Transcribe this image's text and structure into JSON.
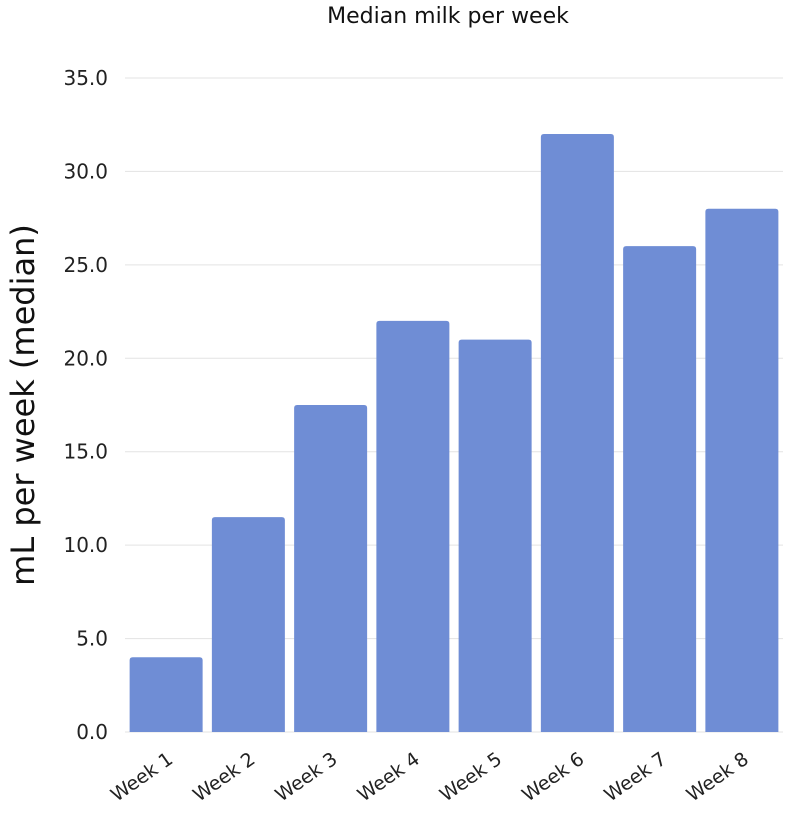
{
  "chart_data": {
    "type": "bar",
    "title": "Median milk per week",
    "xlabel": "",
    "ylabel": "mL per week (median)",
    "categories": [
      "Week 1",
      "Week 2",
      "Week 3",
      "Week 4",
      "Week 5",
      "Week 6",
      "Week 7",
      "Week 8"
    ],
    "values": [
      4.0,
      11.5,
      17.5,
      22.0,
      21.0,
      32.0,
      26.0,
      28.0
    ],
    "ylim": [
      0,
      35
    ],
    "yticks": [
      "0.0",
      "5.0",
      "10.0",
      "15.0",
      "20.0",
      "25.0",
      "30.0",
      "35.0"
    ],
    "grid": true,
    "legend": "none",
    "bar_color": "#6f8dd5"
  }
}
